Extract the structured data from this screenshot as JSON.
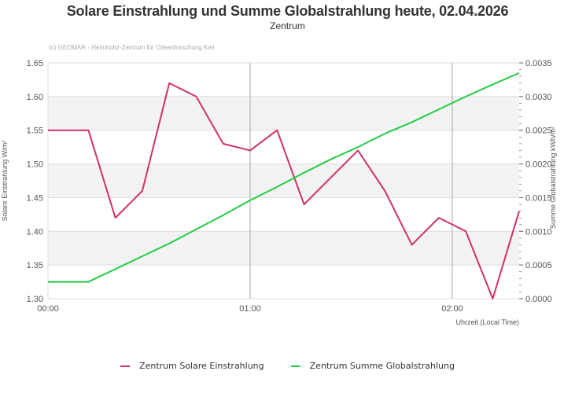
{
  "header": {
    "title": "Solare Einstrahlung und Summe Globalstrahlung heute, 02.04.2026",
    "subtitle": "Zentrum",
    "credit": "(c) GEOMAR - Helmholtz-Zentrum für Ozeanforschung Kiel"
  },
  "legend": {
    "items": [
      {
        "label": "Zentrum Solare Einstrahlung",
        "color": "#d0335f"
      },
      {
        "label": "Zentrum Summe Globalstrahlung",
        "color": "#22cc44"
      }
    ]
  },
  "chart_data": {
    "type": "line",
    "title": "Solare Einstrahlung und Summe Globalstrahlung heute, 02.04.2026",
    "subtitle": "Zentrum",
    "xlabel": "Uhrzeit (Local Time)",
    "ylabel": "Solare Einstrahlung W/m²",
    "ylabel_right": "Summe Globalstrahlung kWh/m²",
    "x_tick_labels": [
      "00:00",
      "01:00",
      "02:00"
    ],
    "y_tick_labels": [
      "1.30",
      "1.35",
      "1.40",
      "1.45",
      "1.50",
      "1.55",
      "1.60",
      "1.65"
    ],
    "y_right_tick_labels": [
      "0.0000",
      "0.0005",
      "0.0010",
      "0.0015",
      "0.0020",
      "0.0025",
      "0.0030",
      "0.0035"
    ],
    "ylim": [
      1.3,
      1.65
    ],
    "ylim_right": [
      0,
      0.0035
    ],
    "grid": true,
    "legend_position": "bottom",
    "x": [
      "00:00",
      "00:12",
      "00:20",
      "00:28",
      "00:36",
      "00:44",
      "00:52",
      "01:00",
      "01:08",
      "01:16",
      "01:24",
      "01:32",
      "01:40",
      "01:48",
      "01:56",
      "02:04",
      "02:12",
      "02:20"
    ],
    "series": [
      {
        "name": "Zentrum Solare Einstrahlung",
        "axis": "left",
        "color": "#d0335f",
        "values": [
          1.55,
          1.55,
          1.42,
          1.46,
          1.62,
          1.6,
          1.53,
          1.52,
          1.55,
          1.44,
          1.48,
          1.52,
          1.46,
          1.38,
          1.42,
          1.4,
          1.3,
          1.43
        ]
      },
      {
        "name": "Zentrum Summe Globalstrahlung",
        "axis": "right",
        "color": "#22cc44",
        "values": [
          0.00025,
          0.00025,
          0.00044,
          0.00063,
          0.00082,
          0.00103,
          0.00124,
          0.00146,
          0.00166,
          0.00187,
          0.00207,
          0.00225,
          0.00245,
          0.00262,
          0.00281,
          0.003,
          0.00318,
          0.00335
        ]
      }
    ]
  }
}
